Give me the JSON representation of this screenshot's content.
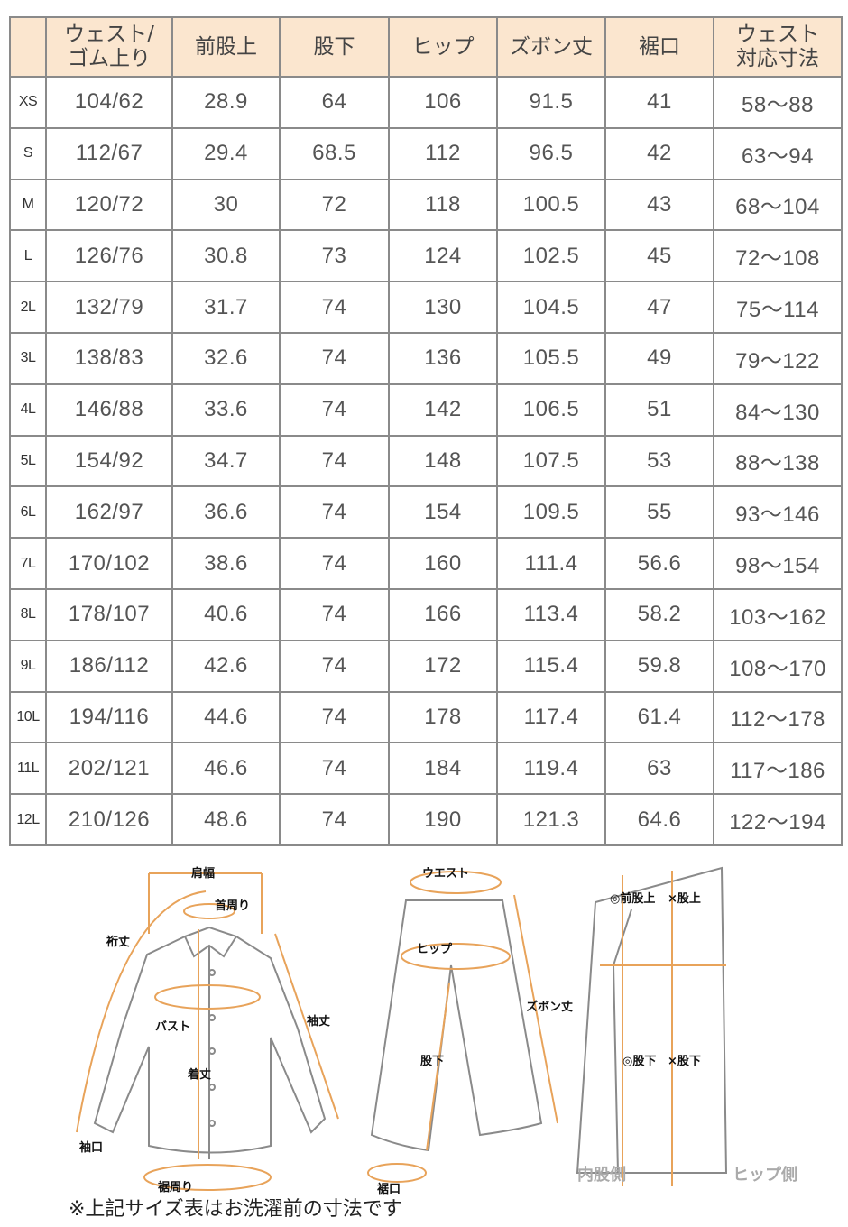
{
  "table": {
    "headers": [
      "",
      "ウェスト/ゴム上り",
      "前股上",
      "股下",
      "ヒップ",
      "ズボン丈",
      "裾口",
      "ウェスト対応寸法"
    ],
    "header_lines": [
      [
        ""
      ],
      [
        "ウェスト/",
        "ゴム上り"
      ],
      [
        "前股上"
      ],
      [
        "股下"
      ],
      [
        "ヒップ"
      ],
      [
        "ズボン丈"
      ],
      [
        "裾口"
      ],
      [
        "ウェスト",
        "対応寸法"
      ]
    ],
    "header_bg": "#fbe6cf",
    "rows": [
      [
        "XS",
        "104/62",
        "28.9",
        "64",
        "106",
        "91.5",
        "41",
        "58～88"
      ],
      [
        "S",
        "112/67",
        "29.4",
        "68.5",
        "112",
        "96.5",
        "42",
        "63～94"
      ],
      [
        "M",
        "120/72",
        "30",
        "72",
        "118",
        "100.5",
        "43",
        "68～104"
      ],
      [
        "L",
        "126/76",
        "30.8",
        "73",
        "124",
        "102.5",
        "45",
        "72～108"
      ],
      [
        "2L",
        "132/79",
        "31.7",
        "74",
        "130",
        "104.5",
        "47",
        "75～114"
      ],
      [
        "3L",
        "138/83",
        "32.6",
        "74",
        "136",
        "105.5",
        "49",
        "79～122"
      ],
      [
        "4L",
        "146/88",
        "33.6",
        "74",
        "142",
        "106.5",
        "51",
        "84～130"
      ],
      [
        "5L",
        "154/92",
        "34.7",
        "74",
        "148",
        "107.5",
        "53",
        "88～138"
      ],
      [
        "6L",
        "162/97",
        "36.6",
        "74",
        "154",
        "109.5",
        "55",
        "93～146"
      ],
      [
        "7L",
        "170/102",
        "38.6",
        "74",
        "160",
        "111.4",
        "56.6",
        "98～154"
      ],
      [
        "8L",
        "178/107",
        "40.6",
        "74",
        "166",
        "113.4",
        "58.2",
        "103～162"
      ],
      [
        "9L",
        "186/112",
        "42.6",
        "74",
        "172",
        "115.4",
        "59.8",
        "108～170"
      ],
      [
        "10L",
        "194/116",
        "44.6",
        "74",
        "178",
        "117.4",
        "61.4",
        "112～178"
      ],
      [
        "11L",
        "202/121",
        "46.6",
        "74",
        "184",
        "119.4",
        "63",
        "117～186"
      ],
      [
        "12L",
        "210/126",
        "48.6",
        "74",
        "190",
        "121.3",
        "64.6",
        "122～194"
      ]
    ]
  },
  "diagram": {
    "shirt": {
      "shoulder": "肩幅",
      "neck": "首周り",
      "yuki": "裄丈",
      "sleeve": "袖丈",
      "bust": "バスト",
      "length": "着丈",
      "cuff": "袖口",
      "hem": "裾周り"
    },
    "pants": {
      "waist": "ウエスト",
      "hip": "ヒップ",
      "inseam": "股下",
      "length": "ズボン丈",
      "hem": "裾口"
    },
    "side": {
      "front_rise": "◎前股上",
      "rise": "×股上",
      "inseam_good": "◎股下",
      "inseam_bad": "×股下",
      "inner": "内股側",
      "hip_side": "ヒップ側"
    },
    "accent_color": "#e8a35a"
  },
  "note": "※上記サイズ表はお洗濯前の寸法です"
}
